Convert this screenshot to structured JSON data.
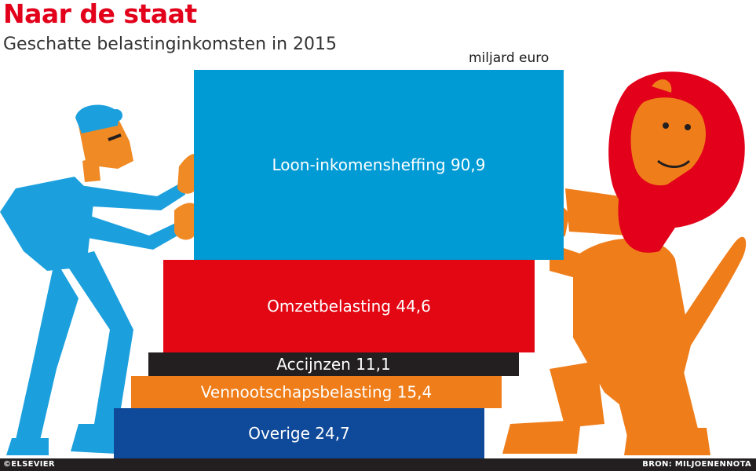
{
  "title": "Naar de staat",
  "subtitle": "Geschatte belastinginkomsten in 2015",
  "unit": "miljard euro",
  "footer": {
    "credit": "©ELSEVIER",
    "source": "BRON: MILJOENENNOTA"
  },
  "colors": {
    "title": "#e2001a",
    "loon": "#009bd5",
    "omzet": "#e30613",
    "accijnzen": "#231f20",
    "vennootschap": "#ef7d1a",
    "overige": "#0f4a9a",
    "man_suit": "#1ca0dd",
    "skin": "#f08a24",
    "lion_body": "#ef7d1a",
    "lion_mane": "#e2001a"
  },
  "illustrations": [
    "man-pushing-icon",
    "lion-icon"
  ],
  "chart_data": {
    "type": "bar",
    "orientation": "horizontal-stacked-blocks",
    "title": "Naar de staat",
    "subtitle": "Geschatte belastinginkomsten in 2015",
    "unit": "miljard euro",
    "categories": [
      "Loon-inkomensheffing",
      "Omzetbelasting",
      "Accijnzen",
      "Vennootschapsbelasting",
      "Overige"
    ],
    "values": [
      90.9,
      44.6,
      11.1,
      15.4,
      24.7
    ],
    "labels": [
      "Loon-inkomensheffing 90,9",
      "Omzetbelasting 44,6",
      "Accijnzen 11,1",
      "Vennootschapsbelasting 15,4",
      "Overige 24,7"
    ],
    "grid": false,
    "legend": "none"
  }
}
